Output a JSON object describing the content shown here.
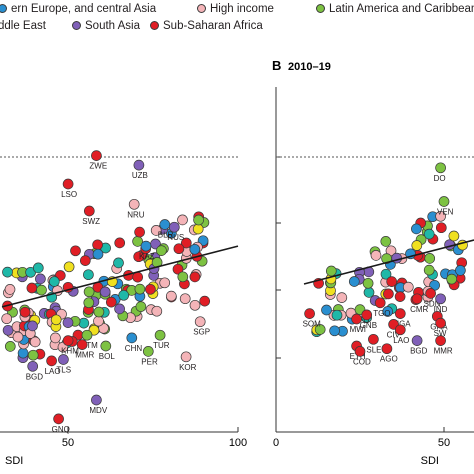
{
  "legend": [
    {
      "label": "ern Europe, and central Asia",
      "color": "#2a8fd0"
    },
    {
      "label": "High income",
      "color": "#f4b4b8"
    },
    {
      "label": "Latin America and Caribbean",
      "color": "#7dc242"
    },
    {
      "label": "ddle East",
      "color": "#ffffff"
    },
    {
      "label": "South Asia",
      "color": "#8060b8"
    },
    {
      "label": "Sub-Saharan Africa",
      "color": "#e01e25"
    }
  ],
  "chart_data": [
    {
      "type": "scatter",
      "panel": "A",
      "xlabel": "SDI",
      "xticks": [
        50,
        100
      ],
      "xlim": [
        0,
        100
      ],
      "reference_line": "dashed",
      "trend_line": [
        [
          0,
          69
        ],
        [
          100,
          114
        ]
      ],
      "labeled_points": [
        {
          "label": "ZWE",
          "x": 40,
          "y": 181,
          "color": "#e01e25"
        },
        {
          "label": "UZB",
          "x": 58,
          "y": 174,
          "color": "#8060b8"
        },
        {
          "label": "LSO",
          "x": 28,
          "y": 160,
          "color": "#e01e25"
        },
        {
          "label": "SWZ",
          "x": 37,
          "y": 140,
          "color": "#e01e25"
        },
        {
          "label": "NRU",
          "x": 56,
          "y": 145,
          "color": "#f4b4b8"
        },
        {
          "label": "BLR",
          "x": 69,
          "y": 130,
          "color": "#2a8fd0"
        },
        {
          "label": "RUS",
          "x": 73,
          "y": 128,
          "color": "#8060b8"
        },
        {
          "label": "KAZ",
          "x": 61,
          "y": 114,
          "color": "#2a8fd0"
        },
        {
          "label": "GTM",
          "x": 36,
          "y": 48,
          "color": "#7dc242"
        },
        {
          "label": "KHM",
          "x": 28,
          "y": 44,
          "color": "#e01e25"
        },
        {
          "label": "MMR",
          "x": 34,
          "y": 41,
          "color": "#e01e25"
        },
        {
          "label": "BOL",
          "x": 44,
          "y": 40,
          "color": "#7dc242"
        },
        {
          "label": "CHN",
          "x": 55,
          "y": 46,
          "color": "#2a8fd0"
        },
        {
          "label": "TUR",
          "x": 67,
          "y": 48,
          "color": "#7dc242"
        },
        {
          "label": "PER",
          "x": 62,
          "y": 36,
          "color": "#7dc242"
        },
        {
          "label": "SGP",
          "x": 84,
          "y": 58,
          "color": "#f4b4b8"
        },
        {
          "label": "KOR",
          "x": 78,
          "y": 32,
          "color": "#f4b4b8"
        },
        {
          "label": "TLS",
          "x": 26,
          "y": 30,
          "color": "#8060b8"
        },
        {
          "label": "LAO",
          "x": 21,
          "y": 29,
          "color": "#e01e25"
        },
        {
          "label": "BGD",
          "x": 13,
          "y": 25,
          "color": "#8060b8"
        },
        {
          "label": "MDV",
          "x": 40,
          "y": 0,
          "color": "#8060b8"
        },
        {
          "label": "GNQ",
          "x": 24,
          "y": -14,
          "color": "#e01e25"
        }
      ]
    },
    {
      "type": "scatter",
      "panel": "B",
      "title": "2010–19",
      "xlabel": "SDI",
      "xticks": [
        0,
        50
      ],
      "reference_line": "dashed",
      "labeled_points": [
        {
          "label": "SOM",
          "x": 10,
          "y": 64,
          "color": "#e01e25"
        },
        {
          "label": "AFG",
          "x": 25,
          "y": 67,
          "color": "#7dc242"
        },
        {
          "label": "TGO",
          "x": 31,
          "y": 72,
          "color": "#e01e25"
        },
        {
          "label": "CMR",
          "x": 42,
          "y": 75,
          "color": "#e01e25"
        },
        {
          "label": "GNB",
          "x": 27,
          "y": 63,
          "color": "#e01e25"
        },
        {
          "label": "MWI",
          "x": 24,
          "y": 60,
          "color": "#e01e25"
        },
        {
          "label": "NGA",
          "x": 37,
          "y": 64,
          "color": "#e01e25"
        },
        {
          "label": "CIV",
          "x": 35,
          "y": 56,
          "color": "#e01e25"
        },
        {
          "label": "LAO",
          "x": 37,
          "y": 52,
          "color": "#e01e25"
        },
        {
          "label": "SLE",
          "x": 29,
          "y": 45,
          "color": "#e01e25"
        },
        {
          "label": "ETH",
          "x": 24,
          "y": 40,
          "color": "#e01e25"
        },
        {
          "label": "COD",
          "x": 25,
          "y": 36,
          "color": "#e01e25"
        },
        {
          "label": "AGO",
          "x": 33,
          "y": 38,
          "color": "#e01e25"
        },
        {
          "label": "BGD",
          "x": 42,
          "y": 44,
          "color": "#8060b8"
        },
        {
          "label": "MMR",
          "x": 49,
          "y": 44,
          "color": "#e01e25"
        },
        {
          "label": "SDN",
          "x": 46,
          "y": 79,
          "color": "#e01e25"
        },
        {
          "label": "IND",
          "x": 49,
          "y": 75,
          "color": "#8060b8"
        },
        {
          "label": "GHA",
          "x": 48,
          "y": 62,
          "color": "#e01e25"
        },
        {
          "label": "SW",
          "x": 49,
          "y": 57,
          "color": "#e01e25"
        },
        {
          "label": "VEN",
          "x": 50,
          "y": 147,
          "color": "#7dc242"
        },
        {
          "label": "DO",
          "x": 49,
          "y": 172,
          "color": "#7dc242"
        }
      ]
    }
  ]
}
